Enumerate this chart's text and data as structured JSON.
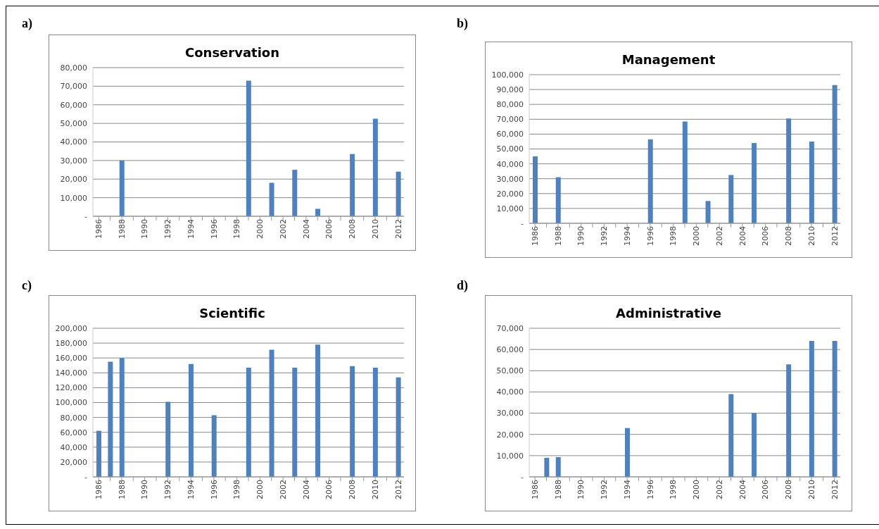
{
  "chart_data": [
    {
      "type": "bar",
      "title": "Conservation",
      "annotations": [
        "a)"
      ],
      "categories": [
        "1986",
        null,
        "1988",
        null,
        "1990",
        null,
        "1992",
        null,
        "1994",
        null,
        "1996",
        null,
        "1998",
        null,
        "2000",
        null,
        "2002",
        null,
        "2004",
        null,
        "2006",
        null,
        "2008",
        null,
        "2010",
        null,
        "2012"
      ],
      "values": [
        null,
        null,
        30000,
        null,
        null,
        null,
        null,
        null,
        null,
        null,
        null,
        null,
        null,
        73000,
        null,
        18000,
        null,
        25000,
        null,
        4000,
        null,
        null,
        33500,
        null,
        52500,
        null,
        24000
      ],
      "color": "#4f81bd",
      "ylim": [
        0,
        80000
      ],
      "yticks": [
        {
          "value": 0,
          "label": "-"
        },
        {
          "value": 10000,
          "label": "10,000"
        },
        {
          "value": 20000,
          "label": "20,000"
        },
        {
          "value": 30000,
          "label": "30,000"
        },
        {
          "value": 40000,
          "label": "40,000"
        },
        {
          "value": 50000,
          "label": "50,000"
        },
        {
          "value": 60000,
          "label": "60,000"
        },
        {
          "value": 70000,
          "label": "70,000"
        },
        {
          "value": 80000,
          "label": "80,000"
        }
      ],
      "grid": "y"
    },
    {
      "type": "bar",
      "title": "Management",
      "annotations": [
        "b)"
      ],
      "categories": [
        "1986",
        null,
        "1988",
        null,
        "1990",
        null,
        "1992",
        null,
        "1994",
        null,
        "1996",
        null,
        "1998",
        null,
        "2000",
        null,
        "2002",
        null,
        "2004",
        null,
        "2006",
        null,
        "2008",
        null,
        "2010",
        null,
        "2012"
      ],
      "values": [
        45000,
        null,
        31000,
        null,
        null,
        null,
        null,
        null,
        null,
        null,
        56500,
        null,
        null,
        68500,
        null,
        15000,
        null,
        32500,
        null,
        54000,
        null,
        null,
        70500,
        null,
        55000,
        null,
        93000
      ],
      "color": "#4f81bd",
      "ylim": [
        0,
        100000
      ],
      "yticks": [
        {
          "value": 0,
          "label": "-"
        },
        {
          "value": 10000,
          "label": "10,000"
        },
        {
          "value": 20000,
          "label": "20,000"
        },
        {
          "value": 30000,
          "label": "30,000"
        },
        {
          "value": 40000,
          "label": "40,000"
        },
        {
          "value": 50000,
          "label": "50,000"
        },
        {
          "value": 60000,
          "label": "60,000"
        },
        {
          "value": 70000,
          "label": "70,000"
        },
        {
          "value": 80000,
          "label": "80,000"
        },
        {
          "value": 90000,
          "label": "90,000"
        },
        {
          "value": 100000,
          "label": "100,000"
        }
      ],
      "grid": "y"
    },
    {
      "type": "bar",
      "title": "Scientific",
      "annotations": [
        "c)"
      ],
      "categories": [
        "1986",
        null,
        "1988",
        null,
        "1990",
        null,
        "1992",
        null,
        "1994",
        null,
        "1996",
        null,
        "1998",
        null,
        "2000",
        null,
        "2002",
        null,
        "2004",
        null,
        "2006",
        null,
        "2008",
        null,
        "2010",
        null,
        "2012"
      ],
      "values": [
        62000,
        155000,
        160000,
        null,
        null,
        null,
        101000,
        null,
        152000,
        null,
        83000,
        null,
        null,
        147000,
        null,
        171000,
        null,
        147000,
        null,
        178000,
        null,
        null,
        149000,
        null,
        147000,
        null,
        134000
      ],
      "color": "#4f81bd",
      "ylim": [
        0,
        200000
      ],
      "yticks": [
        {
          "value": 0,
          "label": "-"
        },
        {
          "value": 20000,
          "label": "20,000"
        },
        {
          "value": 40000,
          "label": "40,000"
        },
        {
          "value": 60000,
          "label": "60,000"
        },
        {
          "value": 80000,
          "label": "80,000"
        },
        {
          "value": 100000,
          "label": "100,000"
        },
        {
          "value": 120000,
          "label": "120,000"
        },
        {
          "value": 140000,
          "label": "140,000"
        },
        {
          "value": 160000,
          "label": "160,000"
        },
        {
          "value": 180000,
          "label": "180,000"
        },
        {
          "value": 200000,
          "label": "200,000"
        }
      ],
      "grid": "y"
    },
    {
      "type": "bar",
      "title": "Administrative",
      "annotations": [
        "d)"
      ],
      "categories": [
        "1986",
        null,
        "1988",
        null,
        "1990",
        null,
        "1992",
        null,
        "1994",
        null,
        "1996",
        null,
        "1998",
        null,
        "2000",
        null,
        "2002",
        null,
        "2004",
        null,
        "2006",
        null,
        "2008",
        null,
        "2010",
        null,
        "2012"
      ],
      "values": [
        null,
        9000,
        9300,
        null,
        null,
        null,
        null,
        null,
        23000,
        null,
        null,
        null,
        null,
        null,
        null,
        null,
        null,
        39000,
        null,
        30000,
        null,
        null,
        53000,
        null,
        64000,
        null,
        64000
      ],
      "color": "#4f81bd",
      "ylim": [
        0,
        70000
      ],
      "yticks": [
        {
          "value": 0,
          "label": "-"
        },
        {
          "value": 10000,
          "label": "10,000"
        },
        {
          "value": 20000,
          "label": "20,000"
        },
        {
          "value": 30000,
          "label": "30,000"
        },
        {
          "value": 40000,
          "label": "40,000"
        },
        {
          "value": 50000,
          "label": "50,000"
        },
        {
          "value": 60000,
          "label": "60,000"
        },
        {
          "value": 70000,
          "label": "70,000"
        }
      ],
      "grid": "y"
    }
  ]
}
